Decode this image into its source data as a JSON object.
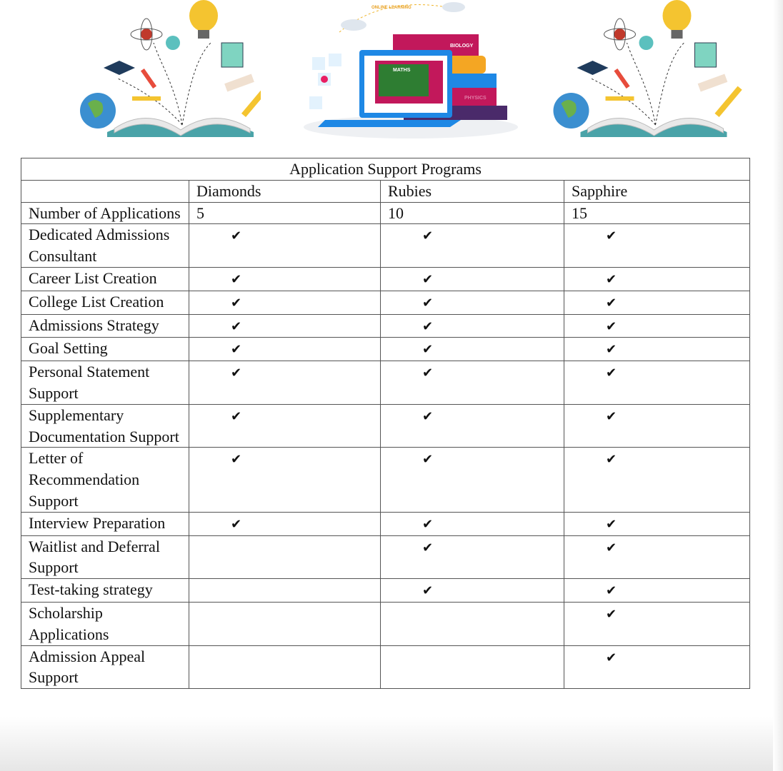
{
  "illustrations": {
    "left": {
      "icon": "open-book-science-icon"
    },
    "center": {
      "icon": "online-learning-laptop-icon",
      "text": [
        "ONLINE LEARNING",
        "MATHS",
        "BIOLOGY",
        "PHYSICS"
      ]
    },
    "right": {
      "icon": "open-book-science-icon"
    }
  },
  "table": {
    "title": "Application Support Programs",
    "columns": [
      "",
      "Diamonds",
      "Rubies",
      "Sapphire"
    ],
    "check_symbol": "✔",
    "rows": [
      {
        "label": "Number of Applications",
        "cells": [
          "5",
          "10",
          "15"
        ]
      },
      {
        "label": "Dedicated Admissions Consultant",
        "cells": [
          true,
          true,
          true
        ]
      },
      {
        "label": "Career List Creation",
        "cells": [
          true,
          true,
          true
        ]
      },
      {
        "label": "College List Creation",
        "cells": [
          true,
          true,
          true
        ]
      },
      {
        "label": "Admissions Strategy",
        "cells": [
          true,
          true,
          true
        ]
      },
      {
        "label": "Goal Setting",
        "cells": [
          true,
          true,
          true
        ]
      },
      {
        "label": "Personal Statement Support",
        "cells": [
          true,
          true,
          true
        ]
      },
      {
        "label": "Supplementary Documentation Support",
        "cells": [
          true,
          true,
          true
        ]
      },
      {
        "label": "Letter of Recommendation Support",
        "cells": [
          true,
          true,
          true
        ]
      },
      {
        "label": "Interview Preparation",
        "cells": [
          true,
          true,
          true
        ]
      },
      {
        "label": "Waitlist and Deferral Support",
        "cells": [
          false,
          true,
          true
        ]
      },
      {
        "label": "Test-taking strategy",
        "cells": [
          false,
          true,
          true
        ]
      },
      {
        "label": "Scholarship Applications",
        "cells": [
          false,
          false,
          true
        ]
      },
      {
        "label": "Admission Appeal Support",
        "cells": [
          false,
          false,
          true
        ]
      }
    ]
  }
}
